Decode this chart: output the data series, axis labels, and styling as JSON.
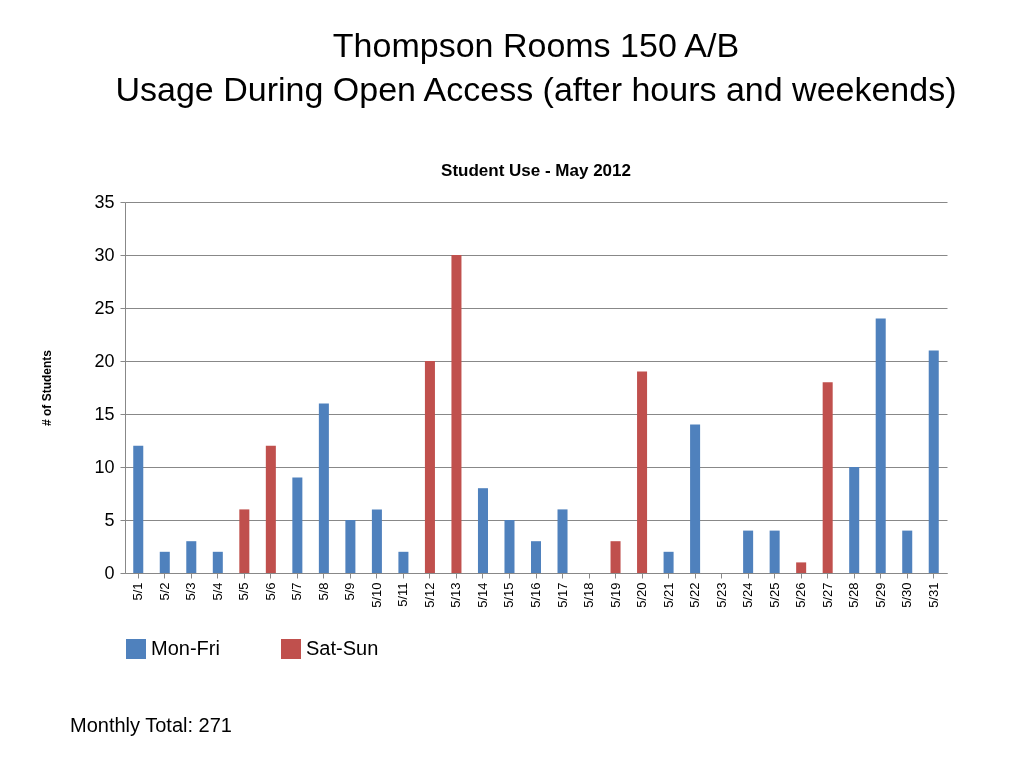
{
  "chart_data": {
    "type": "bar",
    "title": [
      "Thompson Rooms 150 A/B",
      "Usage During Open Access (after hours and weekends)"
    ],
    "subtitle": "Student Use - May 2012",
    "ylabel": "# of Students",
    "categories": [
      "5/1",
      "5/2",
      "5/3",
      "5/4",
      "5/5",
      "5/6",
      "5/7",
      "5/8",
      "5/9",
      "5/10",
      "5/11",
      "5/12",
      "5/13",
      "5/14",
      "5/15",
      "5/16",
      "5/17",
      "5/18",
      "5/19",
      "5/20",
      "5/21",
      "5/22",
      "5/23",
      "5/24",
      "5/25",
      "5/26",
      "5/27",
      "5/28",
      "5/29",
      "5/30",
      "5/31"
    ],
    "series": [
      {
        "name": "Mon-Fri",
        "color": "#4f81bd",
        "values": [
          12,
          2,
          3,
          2,
          null,
          null,
          9,
          16,
          5,
          6,
          2,
          null,
          null,
          8,
          5,
          3,
          6,
          0,
          null,
          null,
          2,
          14,
          0,
          4,
          4,
          null,
          null,
          10,
          24,
          4,
          21
        ]
      },
      {
        "name": "Sat-Sun",
        "color": "#c0504d",
        "values": [
          null,
          null,
          null,
          null,
          6,
          12,
          null,
          null,
          null,
          null,
          null,
          20,
          30,
          null,
          null,
          null,
          null,
          null,
          3,
          19,
          null,
          null,
          null,
          null,
          null,
          1,
          18,
          null,
          null,
          null,
          null
        ]
      }
    ],
    "ylim": [
      0,
      35
    ],
    "yticks": [
      0,
      5,
      10,
      15,
      20,
      25,
      30,
      35
    ],
    "grid": "y",
    "legend": "bottom",
    "annotations": [
      "Monthly Total: 271"
    ]
  }
}
